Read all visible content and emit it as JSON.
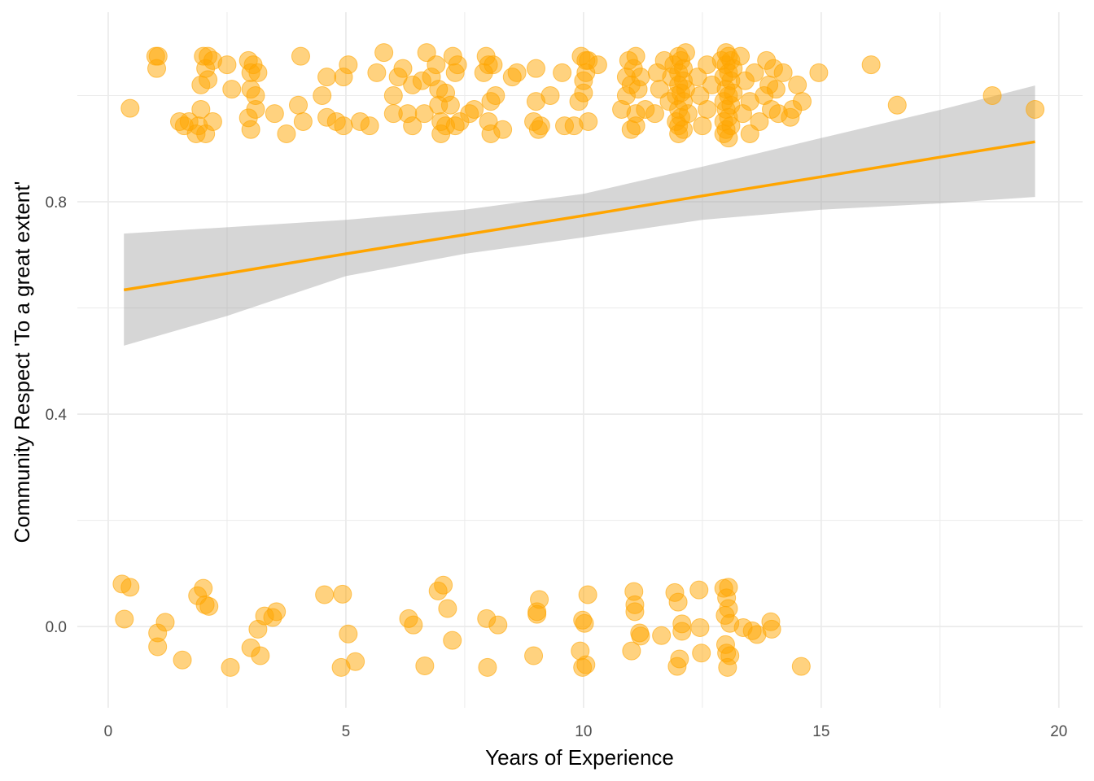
{
  "chart_data": {
    "type": "scatter",
    "title": "",
    "xlabel": "Years of Experience",
    "ylabel": "Community Respect 'To a great extent'",
    "xlim": [
      -0.65,
      20.5
    ],
    "ylim": [
      -0.153,
      1.157
    ],
    "x_ticks": [
      0,
      5,
      10,
      15,
      20
    ],
    "x_tick_labels": [
      "0",
      "5",
      "10",
      "15",
      "20"
    ],
    "y_ticks": [
      0.0,
      0.4,
      0.8
    ],
    "y_tick_labels": [
      "0.0",
      "0.4",
      "0.8"
    ],
    "y_minor_grid": [
      0.2,
      0.6,
      1.0
    ],
    "x_minor_grid": [
      2.5,
      7.5,
      12.5,
      17.5
    ],
    "grid": true,
    "theme": "minimal",
    "colors": {
      "points": "#FFA500",
      "fit_line": "#FFA500",
      "ribbon": "#999999",
      "grid": "#ebebeb"
    },
    "point_alpha": 0.5,
    "points": [
      [
        0.29,
        0.08
      ],
      [
        0.46,
        0.074
      ],
      [
        0.34,
        0.014
      ],
      [
        1.04,
        -0.012
      ],
      [
        1.2,
        0.008
      ],
      [
        1.04,
        -0.038
      ],
      [
        1.56,
        -0.063
      ],
      [
        1.88,
        0.058
      ],
      [
        2.0,
        0.072
      ],
      [
        2.04,
        0.041
      ],
      [
        2.12,
        0.038
      ],
      [
        2.57,
        -0.077
      ],
      [
        3.0,
        -0.04
      ],
      [
        3.15,
        -0.005
      ],
      [
        3.2,
        -0.055
      ],
      [
        3.29,
        0.02
      ],
      [
        3.46,
        0.017
      ],
      [
        3.54,
        0.028
      ],
      [
        4.55,
        0.06
      ],
      [
        4.93,
        0.061
      ],
      [
        5.05,
        -0.014
      ],
      [
        4.9,
        -0.077
      ],
      [
        5.2,
        -0.066
      ],
      [
        6.32,
        0.015
      ],
      [
        6.42,
        0.003
      ],
      [
        6.66,
        -0.074
      ],
      [
        6.94,
        0.067
      ],
      [
        7.05,
        0.078
      ],
      [
        7.14,
        0.034
      ],
      [
        7.24,
        -0.026
      ],
      [
        7.96,
        0.015
      ],
      [
        7.98,
        -0.077
      ],
      [
        8.2,
        0.003
      ],
      [
        8.95,
        -0.055
      ],
      [
        9.02,
        0.028
      ],
      [
        9.07,
        0.051
      ],
      [
        9.02,
        0.023
      ],
      [
        9.93,
        -0.046
      ],
      [
        9.98,
        0.012
      ],
      [
        10.02,
        0.006
      ],
      [
        9.98,
        -0.077
      ],
      [
        10.05,
        -0.072
      ],
      [
        10.09,
        0.06
      ],
      [
        11.01,
        -0.046
      ],
      [
        11.06,
        0.066
      ],
      [
        11.08,
        0.041
      ],
      [
        11.08,
        0.028
      ],
      [
        11.18,
        -0.012
      ],
      [
        11.2,
        -0.018
      ],
      [
        11.64,
        -0.017
      ],
      [
        11.92,
        0.064
      ],
      [
        11.99,
        0.046
      ],
      [
        12.07,
        0.005
      ],
      [
        12.07,
        -0.009
      ],
      [
        12.02,
        -0.061
      ],
      [
        11.97,
        -0.075
      ],
      [
        12.43,
        0.069
      ],
      [
        12.45,
        -0.002
      ],
      [
        12.48,
        -0.05
      ],
      [
        12.95,
        0.072
      ],
      [
        13.05,
        0.074
      ],
      [
        13.01,
        0.054
      ],
      [
        13.05,
        0.034
      ],
      [
        12.98,
        0.021
      ],
      [
        13.08,
        0.006
      ],
      [
        12.99,
        -0.034
      ],
      [
        13.01,
        -0.05
      ],
      [
        13.08,
        -0.055
      ],
      [
        13.03,
        -0.077
      ],
      [
        13.36,
        -0.002
      ],
      [
        13.55,
        -0.008
      ],
      [
        13.65,
        -0.015
      ],
      [
        13.94,
        0.009
      ],
      [
        13.96,
        -0.005
      ],
      [
        14.58,
        -0.075
      ],
      [
        0.46,
        0.976
      ],
      [
        1.0,
        1.074
      ],
      [
        1.05,
        1.074
      ],
      [
        1.02,
        1.051
      ],
      [
        1.5,
        0.951
      ],
      [
        1.6,
        0.943
      ],
      [
        1.7,
        0.951
      ],
      [
        1.85,
        0.928
      ],
      [
        1.9,
        0.943
      ],
      [
        1.95,
        0.974
      ],
      [
        1.95,
        1.02
      ],
      [
        2.0,
        1.074
      ],
      [
        2.05,
        1.051
      ],
      [
        2.05,
        0.928
      ],
      [
        2.1,
        1.074
      ],
      [
        2.1,
        1.03
      ],
      [
        2.2,
        1.066
      ],
      [
        2.2,
        0.951
      ],
      [
        2.5,
        1.058
      ],
      [
        2.6,
        1.012
      ],
      [
        2.95,
        1.066
      ],
      [
        2.95,
        0.958
      ],
      [
        3.0,
        1.043
      ],
      [
        3.0,
        1.012
      ],
      [
        3.0,
        0.936
      ],
      [
        3.05,
        1.058
      ],
      [
        3.1,
        0.974
      ],
      [
        3.1,
        1.0
      ],
      [
        3.15,
        1.043
      ],
      [
        3.5,
        0.966
      ],
      [
        3.75,
        0.928
      ],
      [
        4.0,
        0.982
      ],
      [
        4.05,
        1.074
      ],
      [
        4.1,
        0.951
      ],
      [
        4.5,
        1.0
      ],
      [
        4.6,
        1.035
      ],
      [
        4.6,
        0.959
      ],
      [
        4.8,
        0.951
      ],
      [
        4.95,
        0.943
      ],
      [
        4.95,
        1.035
      ],
      [
        5.05,
        1.058
      ],
      [
        5.3,
        0.951
      ],
      [
        5.5,
        0.943
      ],
      [
        5.65,
        1.043
      ],
      [
        5.8,
        1.081
      ],
      [
        6.0,
        1.0
      ],
      [
        6.0,
        0.966
      ],
      [
        6.1,
        1.035
      ],
      [
        6.2,
        1.051
      ],
      [
        6.3,
        0.966
      ],
      [
        6.4,
        0.943
      ],
      [
        6.4,
        1.02
      ],
      [
        6.6,
        1.028
      ],
      [
        6.65,
        0.966
      ],
      [
        6.7,
        1.081
      ],
      [
        6.8,
        1.035
      ],
      [
        6.9,
        1.058
      ],
      [
        6.95,
        1.012
      ],
      [
        6.95,
        0.982
      ],
      [
        7.0,
        0.951
      ],
      [
        7.0,
        0.928
      ],
      [
        7.1,
        0.943
      ],
      [
        7.1,
        1.005
      ],
      [
        7.2,
        0.982
      ],
      [
        7.25,
        1.074
      ],
      [
        7.3,
        1.043
      ],
      [
        7.3,
        0.943
      ],
      [
        7.35,
        1.058
      ],
      [
        7.4,
        0.951
      ],
      [
        7.6,
        0.966
      ],
      [
        7.7,
        0.974
      ],
      [
        7.9,
        1.043
      ],
      [
        7.95,
        1.074
      ],
      [
        8.0,
        1.058
      ],
      [
        8.0,
        0.951
      ],
      [
        8.05,
        0.928
      ],
      [
        8.05,
        0.989
      ],
      [
        8.1,
        1.058
      ],
      [
        8.15,
        1.0
      ],
      [
        8.3,
        0.936
      ],
      [
        8.5,
        1.035
      ],
      [
        8.6,
        1.043
      ],
      [
        8.95,
        0.951
      ],
      [
        9.0,
        1.051
      ],
      [
        9.0,
        0.989
      ],
      [
        9.05,
        0.936
      ],
      [
        9.1,
        0.943
      ],
      [
        9.3,
        1.0
      ],
      [
        9.55,
        1.043
      ],
      [
        9.6,
        0.943
      ],
      [
        9.8,
        0.943
      ],
      [
        9.9,
        0.989
      ],
      [
        9.95,
        1.074
      ],
      [
        10.0,
        1.028
      ],
      [
        10.0,
        1.005
      ],
      [
        10.05,
        1.066
      ],
      [
        10.05,
        1.043
      ],
      [
        10.1,
        0.951
      ],
      [
        10.1,
        1.066
      ],
      [
        10.3,
        1.058
      ],
      [
        10.8,
        0.974
      ],
      [
        10.9,
        1.035
      ],
      [
        10.9,
        1.0
      ],
      [
        10.95,
        1.066
      ],
      [
        11.0,
        0.936
      ],
      [
        11.0,
        1.02
      ],
      [
        11.05,
        1.051
      ],
      [
        11.1,
        1.074
      ],
      [
        11.1,
        0.966
      ],
      [
        11.1,
        0.943
      ],
      [
        11.15,
        1.012
      ],
      [
        11.2,
        1.035
      ],
      [
        11.3,
        0.974
      ],
      [
        11.5,
        0.966
      ],
      [
        11.55,
        1.043
      ],
      [
        11.6,
        1.012
      ],
      [
        11.7,
        1.066
      ],
      [
        11.8,
        0.989
      ],
      [
        11.85,
        1.035
      ],
      [
        11.9,
        1.058
      ],
      [
        11.95,
        1.0
      ],
      [
        11.95,
        0.951
      ],
      [
        12.0,
        1.074
      ],
      [
        12.0,
        1.043
      ],
      [
        12.0,
        1.02
      ],
      [
        12.0,
        0.974
      ],
      [
        12.0,
        0.943
      ],
      [
        12.0,
        0.928
      ],
      [
        12.05,
        1.066
      ],
      [
        12.05,
        1.005
      ],
      [
        12.05,
        0.959
      ],
      [
        12.1,
        1.051
      ],
      [
        12.1,
        1.028
      ],
      [
        12.1,
        0.989
      ],
      [
        12.1,
        0.936
      ],
      [
        12.15,
        1.081
      ],
      [
        12.15,
        1.012
      ],
      [
        12.2,
        0.966
      ],
      [
        12.4,
        1.035
      ],
      [
        12.45,
        1.0
      ],
      [
        12.5,
        0.943
      ],
      [
        12.6,
        1.058
      ],
      [
        12.6,
        0.974
      ],
      [
        12.7,
        1.02
      ],
      [
        12.9,
        1.066
      ],
      [
        12.95,
        1.035
      ],
      [
        12.95,
        0.989
      ],
      [
        12.95,
        0.951
      ],
      [
        12.95,
        0.928
      ],
      [
        13.0,
        1.081
      ],
      [
        13.0,
        1.058
      ],
      [
        13.0,
        1.012
      ],
      [
        13.0,
        0.974
      ],
      [
        13.0,
        0.936
      ],
      [
        13.05,
        1.074
      ],
      [
        13.05,
        1.043
      ],
      [
        13.05,
        1.0
      ],
      [
        13.05,
        0.959
      ],
      [
        13.05,
        0.92
      ],
      [
        13.1,
        1.066
      ],
      [
        13.1,
        1.028
      ],
      [
        13.1,
        0.982
      ],
      [
        13.1,
        0.943
      ],
      [
        13.15,
        1.051
      ],
      [
        13.15,
        1.005
      ],
      [
        13.3,
        1.074
      ],
      [
        13.35,
        0.966
      ],
      [
        13.4,
        1.028
      ],
      [
        13.5,
        0.928
      ],
      [
        13.5,
        0.989
      ],
      [
        13.6,
        1.043
      ],
      [
        13.7,
        0.951
      ],
      [
        13.8,
        1.0
      ],
      [
        13.85,
        1.066
      ],
      [
        13.9,
        1.02
      ],
      [
        13.95,
        0.974
      ],
      [
        14.0,
        1.051
      ],
      [
        14.05,
        1.012
      ],
      [
        14.1,
        0.966
      ],
      [
        14.2,
        1.043
      ],
      [
        14.35,
        0.959
      ],
      [
        14.4,
        0.974
      ],
      [
        14.5,
        1.02
      ],
      [
        14.6,
        0.989
      ],
      [
        14.95,
        1.043
      ],
      [
        16.05,
        1.058
      ],
      [
        16.6,
        0.982
      ],
      [
        18.6,
        1.0
      ],
      [
        19.5,
        0.974
      ]
    ],
    "fit": {
      "method": "linear",
      "x": [
        0.33,
        2.5,
        5,
        7.5,
        10,
        12.5,
        15,
        17.5,
        19.5
      ],
      "y": [
        0.634,
        0.665,
        0.702,
        0.738,
        0.774,
        0.811,
        0.847,
        0.884,
        0.913
      ],
      "lower": [
        0.529,
        0.585,
        0.66,
        0.702,
        0.733,
        0.766,
        0.785,
        0.797,
        0.809
      ],
      "upper": [
        0.74,
        0.752,
        0.766,
        0.785,
        0.815,
        0.866,
        0.92,
        0.973,
        1.019
      ]
    }
  }
}
